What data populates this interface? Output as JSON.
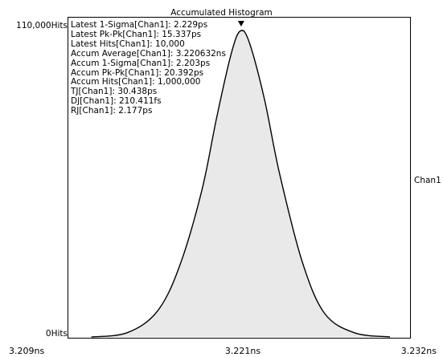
{
  "window": {
    "channel_label": "Chan1"
  },
  "stats": [
    "Latest 1-Sigma[Chan1]: 2.229ps",
    "Latest Pk-Pk[Chan1]: 15.337ps",
    "Latest Hits[Chan1]: 10,000",
    "Accum Average[Chan1]: 3.220632ns",
    "Accum 1-Sigma[Chan1]: 2.203ps",
    "Accum Pk-Pk[Chan1]: 20.392ps",
    "Accum Hits[Chan1]: 1,000,000",
    "TJ[Chan1]: 30.438ps",
    "DJ[Chan1]: 210.411fs",
    "RJ[Chan1]: 2.177ps"
  ],
  "chart_data": {
    "type": "area",
    "title": "Accumulated Histogram",
    "y_tick_labels": [
      "110,000Hits",
      "0Hits"
    ],
    "x_tick_labels": [
      "3.209ns",
      "3.221ns",
      "3.232ns"
    ],
    "xlim": [
      3.209,
      3.232
    ],
    "ylim": [
      0,
      110000
    ],
    "x_unit": "ns",
    "y_unit": "Hits",
    "series": [
      {
        "x": [
          3.2106,
          3.213,
          3.215,
          3.2165,
          3.218,
          3.219,
          3.22,
          3.2206,
          3.2212,
          3.2222,
          3.2232,
          3.2247,
          3.2262,
          3.2282,
          3.2306
        ],
        "values": [
          0,
          1500,
          9000,
          25000,
          52000,
          78000,
          101000,
          108500,
          104000,
          84000,
          58000,
          27000,
          8500,
          1500,
          0
        ]
      }
    ],
    "marker": {
      "x": 3.22063,
      "label": ""
    },
    "legend": "none",
    "grid": false,
    "colors": {
      "curve": "#000000",
      "fill": "#bfbfbf",
      "frame": "#000000"
    }
  }
}
